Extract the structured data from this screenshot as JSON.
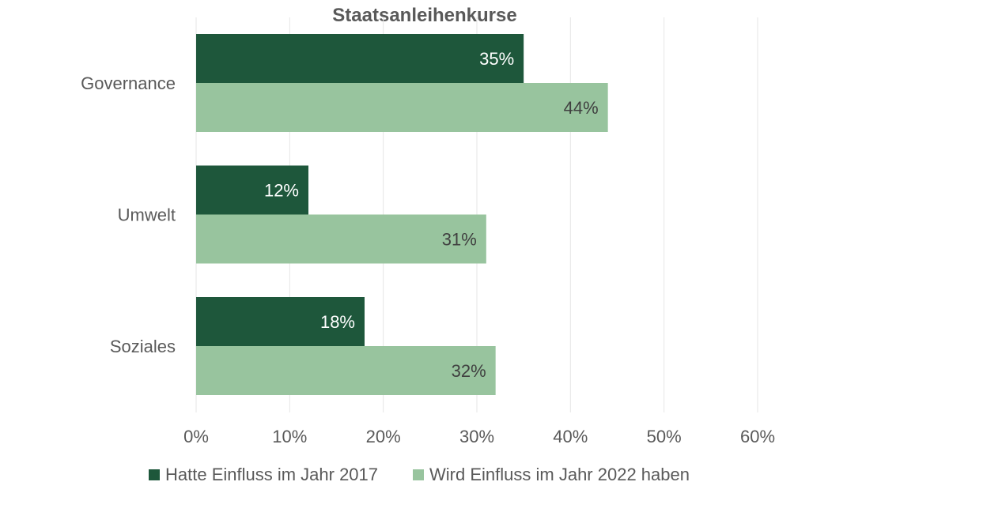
{
  "chart_data": {
    "type": "bar",
    "orientation": "horizontal",
    "title": "Staatsanleihenkurse",
    "categories": [
      "Governance",
      "Umwelt",
      "Soziales"
    ],
    "series": [
      {
        "name": "Hatte Einfluss im Jahr 2017",
        "values": [
          35,
          12,
          18
        ],
        "color": "#1e573b",
        "label_color": "#ffffff"
      },
      {
        "name": "Wird Einfluss im Jahr 2022 haben",
        "values": [
          44,
          31,
          32
        ],
        "color": "#98c49e",
        "label_color": "#404040"
      }
    ],
    "xlim": [
      0,
      60
    ],
    "x_ticks": [
      0,
      10,
      20,
      30,
      40,
      50,
      60
    ],
    "tick_suffix": "%",
    "data_label_suffix": "%",
    "grid": "vertical",
    "legend_position": "bottom"
  }
}
